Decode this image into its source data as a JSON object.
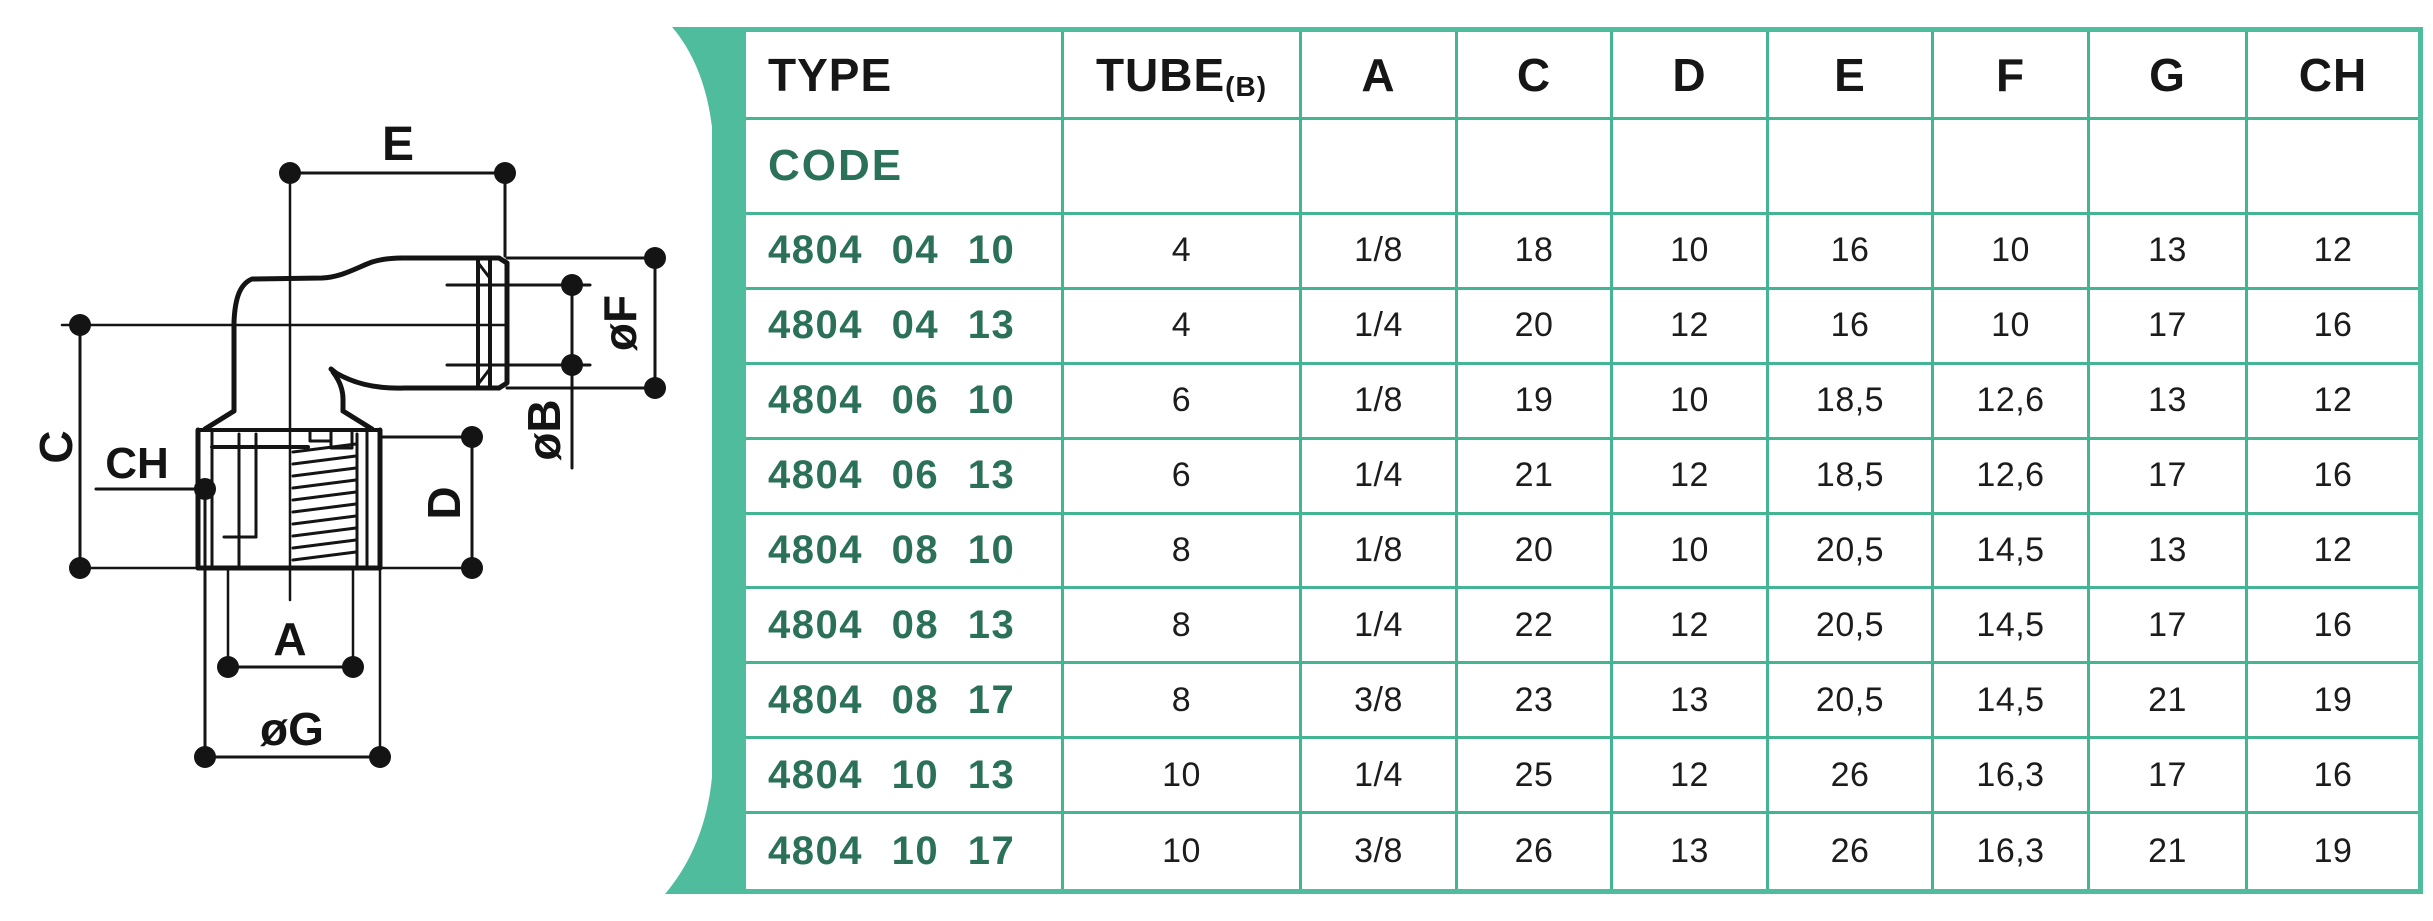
{
  "diagram": {
    "labels": {
      "e": "E",
      "f": "øF",
      "b": "øB",
      "c": "C",
      "ch": "CH",
      "d": "D",
      "a": "A",
      "g": "øG"
    }
  },
  "table": {
    "columns": [
      "TYPE",
      "TUBE",
      "A",
      "C",
      "D",
      "E",
      "F",
      "G",
      "CH"
    ],
    "tube_subscript": "(B)",
    "code_label": "CODE",
    "rows": [
      {
        "code": "4804 04 10",
        "values": [
          "4",
          "1/8",
          "18",
          "10",
          "16",
          "10",
          "13",
          "12"
        ]
      },
      {
        "code": "4804 04 13",
        "values": [
          "4",
          "1/4",
          "20",
          "12",
          "16",
          "10",
          "17",
          "16"
        ]
      },
      {
        "code": "4804 06 10",
        "values": [
          "6",
          "1/8",
          "19",
          "10",
          "18,5",
          "12,6",
          "13",
          "12"
        ]
      },
      {
        "code": "4804 06 13",
        "values": [
          "6",
          "1/4",
          "21",
          "12",
          "18,5",
          "12,6",
          "17",
          "16"
        ]
      },
      {
        "code": "4804 08 10",
        "values": [
          "8",
          "1/8",
          "20",
          "10",
          "20,5",
          "14,5",
          "13",
          "12"
        ]
      },
      {
        "code": "4804 08 13",
        "values": [
          "8",
          "1/4",
          "22",
          "12",
          "20,5",
          "14,5",
          "17",
          "16"
        ]
      },
      {
        "code": "4804 08 17",
        "values": [
          "8",
          "3/8",
          "23",
          "13",
          "20,5",
          "14,5",
          "21",
          "19"
        ]
      },
      {
        "code": "4804 10 13",
        "values": [
          "10",
          "1/4",
          "25",
          "12",
          "26",
          "16,3",
          "17",
          "16"
        ]
      },
      {
        "code": "4804 10 17",
        "values": [
          "10",
          "3/8",
          "26",
          "13",
          "26",
          "16,3",
          "21",
          "19"
        ]
      }
    ]
  },
  "colors": {
    "teal": "#4fbc9d",
    "gridline": "#43b593",
    "code_green": "#2b7059",
    "header_text": "#161616"
  }
}
